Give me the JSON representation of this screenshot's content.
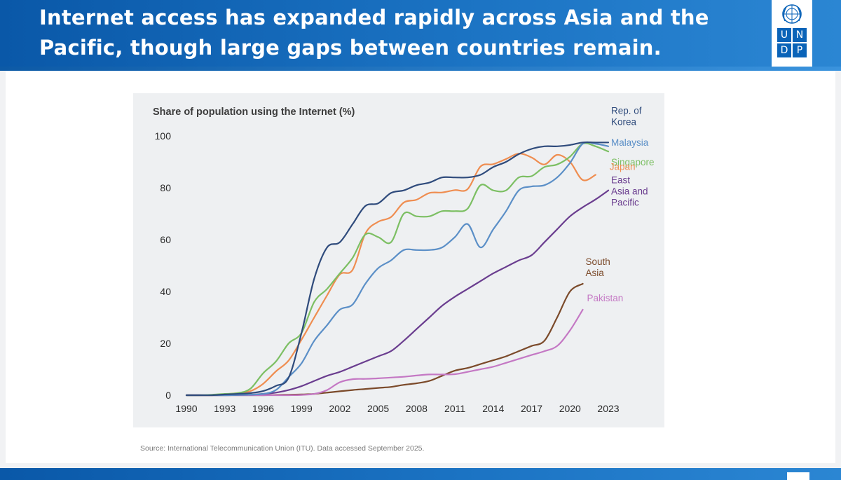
{
  "header": {
    "title_line1": "Internet access has expanded rapidly across Asia and the",
    "title_line2": "Pacific, though large gaps between countries remain."
  },
  "logo": {
    "letters": [
      "U",
      "N",
      "D",
      "P"
    ]
  },
  "source": "Source: International Telecommunication Union (ITU). Data accessed September 2025.",
  "colors": {
    "header_blue": "#1565b8",
    "korea": "#2f4b7c",
    "malaysia": "#5b8fc7",
    "singapore": "#7cbf63",
    "japan": "#ef8d50",
    "east_asia_pacific": "#6a3d8f",
    "south_asia": "#7b4a2a",
    "pakistan": "#c478c4"
  },
  "chart_data": {
    "type": "line",
    "title": "Share of population using the Internet (%)",
    "xlabel": "",
    "ylabel": "Share of population using the Internet (%)",
    "xlim": [
      1990,
      2023
    ],
    "ylim": [
      0,
      100
    ],
    "xticks": [
      "1990",
      "1993",
      "1996",
      "1999",
      "2002",
      "2005",
      "2008",
      "2011",
      "2014",
      "2017",
      "2020",
      "2023"
    ],
    "yticks": [
      "0",
      "20",
      "40",
      "60",
      "80",
      "100"
    ],
    "grid": false,
    "legend": "end-of-line labels",
    "series": [
      {
        "name": "Rep. of Korea",
        "label_lines": [
          "Rep. of",
          "Korea"
        ],
        "color": "#2f4b7c",
        "x": [
          1990,
          1991,
          1992,
          1993,
          1994,
          1995,
          1996,
          1997,
          1998,
          1999,
          2000,
          2001,
          2002,
          2003,
          2004,
          2005,
          2006,
          2007,
          2008,
          2009,
          2010,
          2011,
          2012,
          2013,
          2014,
          2015,
          2016,
          2017,
          2018,
          2019,
          2020,
          2021,
          2022,
          2023
        ],
        "values": [
          0,
          0,
          0,
          0.3,
          0.5,
          0.8,
          1.6,
          3.6,
          6.8,
          24,
          45,
          57,
          59,
          66,
          73,
          74,
          78,
          79,
          81,
          82,
          84,
          84,
          84,
          85,
          88,
          90,
          93,
          95,
          96,
          96,
          96.5,
          97.5,
          97.5,
          97.5
        ]
      },
      {
        "name": "Malaysia",
        "label_lines": [
          "Malaysia"
        ],
        "color": "#5b8fc7",
        "x": [
          1990,
          1991,
          1992,
          1993,
          1994,
          1995,
          1996,
          1997,
          1998,
          1999,
          2000,
          2001,
          2002,
          2003,
          2004,
          2005,
          2006,
          2007,
          2008,
          2009,
          2010,
          2011,
          2012,
          2013,
          2014,
          2015,
          2016,
          2017,
          2018,
          2019,
          2020,
          2021,
          2022,
          2023
        ],
        "values": [
          0,
          0,
          0,
          0,
          0.1,
          0.2,
          0.5,
          2,
          7,
          12.3,
          21,
          27,
          33,
          35,
          43,
          49,
          52,
          56,
          56,
          56,
          57,
          61,
          66,
          57,
          64,
          71,
          79,
          80.5,
          81,
          84,
          89.6,
          97,
          97,
          96
        ]
      },
      {
        "name": "Singapore",
        "label_lines": [
          "Singapore"
        ],
        "color": "#7cbf63",
        "x": [
          1990,
          1991,
          1992,
          1993,
          1994,
          1995,
          1996,
          1997,
          1998,
          1999,
          2000,
          2001,
          2002,
          2003,
          2004,
          2005,
          2006,
          2007,
          2008,
          2009,
          2010,
          2011,
          2012,
          2013,
          2014,
          2015,
          2016,
          2017,
          2018,
          2019,
          2020,
          2021,
          2022,
          2023
        ],
        "values": [
          0,
          0,
          0.2,
          0.5,
          0.8,
          2.5,
          8.5,
          13,
          20,
          24,
          36,
          41,
          47,
          53,
          62,
          61,
          59,
          70,
          69,
          69,
          71,
          71,
          72,
          81,
          79,
          79,
          84,
          84.5,
          88,
          89,
          92,
          97,
          96,
          94
        ]
      },
      {
        "name": "Japan",
        "label_lines": [
          "Japan"
        ],
        "color": "#ef8d50",
        "x": [
          1990,
          1991,
          1992,
          1993,
          1994,
          1995,
          1996,
          1997,
          1998,
          1999,
          2000,
          2001,
          2002,
          2003,
          2004,
          2005,
          2006,
          2007,
          2008,
          2009,
          2010,
          2011,
          2012,
          2013,
          2014,
          2015,
          2016,
          2017,
          2018,
          2019,
          2020,
          2021,
          2022
        ],
        "values": [
          0,
          0,
          0,
          0.4,
          0.8,
          1.6,
          4.4,
          9.2,
          13.4,
          21.4,
          30,
          38.5,
          46.6,
          48.4,
          62.4,
          66.9,
          68.7,
          74.3,
          75.4,
          78,
          78.2,
          79.1,
          79.5,
          88.2,
          89.1,
          91.1,
          93.2,
          91.7,
          89,
          92.7,
          90,
          83,
          85
        ]
      },
      {
        "name": "East Asia and Pacific",
        "label_lines": [
          "East",
          "Asia and",
          "Pacific"
        ],
        "color": "#6a3d8f",
        "x": [
          1990,
          1991,
          1992,
          1993,
          1994,
          1995,
          1996,
          1997,
          1998,
          1999,
          2000,
          2001,
          2002,
          2003,
          2004,
          2005,
          2006,
          2007,
          2008,
          2009,
          2010,
          2011,
          2012,
          2013,
          2014,
          2015,
          2016,
          2017,
          2018,
          2019,
          2020,
          2021,
          2022,
          2023
        ],
        "values": [
          0,
          0,
          0,
          0,
          0.1,
          0.2,
          0.5,
          1,
          2,
          3.5,
          5.5,
          7.5,
          9,
          11,
          13,
          15,
          17,
          21,
          25.5,
          30,
          34.5,
          38,
          41,
          44,
          47,
          49.5,
          52,
          54,
          59,
          64,
          69,
          72.5,
          75.5,
          79
        ]
      },
      {
        "name": "South Asia",
        "label_lines": [
          "South",
          "Asia"
        ],
        "color": "#7b4a2a",
        "x": [
          1990,
          1991,
          1992,
          1993,
          1994,
          1995,
          1996,
          1997,
          1998,
          1999,
          2000,
          2001,
          2002,
          2003,
          2004,
          2005,
          2006,
          2007,
          2008,
          2009,
          2010,
          2011,
          2012,
          2013,
          2014,
          2015,
          2016,
          2017,
          2018,
          2019,
          2020,
          2021
        ],
        "values": [
          0,
          0,
          0,
          0,
          0,
          0,
          0,
          0.1,
          0.2,
          0.3,
          0.5,
          1,
          1.5,
          2,
          2.4,
          2.8,
          3.2,
          4,
          4.6,
          5.5,
          7.5,
          9.5,
          10.5,
          12,
          13.5,
          15,
          17,
          19,
          21,
          30,
          40,
          43
        ]
      },
      {
        "name": "Pakistan",
        "label_lines": [
          "Pakistan"
        ],
        "color": "#c478c4",
        "x": [
          1990,
          1991,
          1992,
          1993,
          1994,
          1995,
          1996,
          1997,
          1998,
          1999,
          2000,
          2001,
          2002,
          2003,
          2004,
          2005,
          2006,
          2007,
          2008,
          2009,
          2010,
          2011,
          2012,
          2013,
          2014,
          2015,
          2016,
          2017,
          2018,
          2019,
          2020,
          2021
        ],
        "values": [
          0,
          0,
          0,
          0,
          0,
          0,
          0,
          0,
          0,
          0.1,
          0.5,
          2,
          5,
          6.2,
          6.3,
          6.5,
          6.8,
          7.1,
          7.6,
          8,
          8,
          8.1,
          9,
          10,
          11,
          12.5,
          14,
          15.5,
          17,
          19,
          25,
          33
        ]
      }
    ]
  }
}
